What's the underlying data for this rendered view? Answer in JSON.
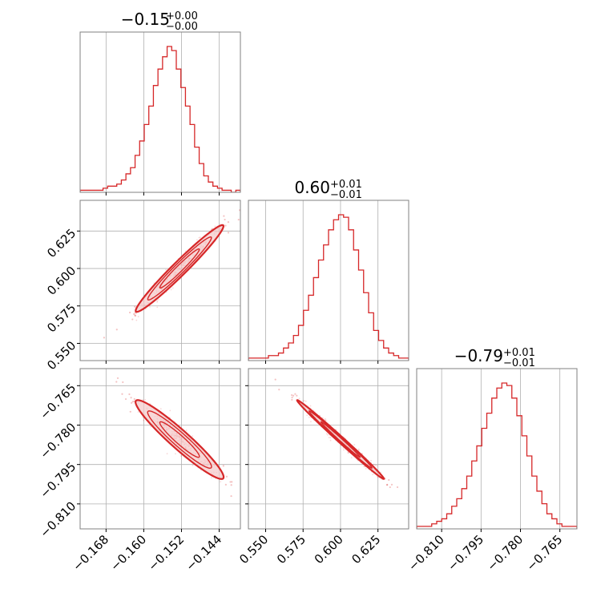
{
  "colors": {
    "series": "#d62728",
    "grid": "#b0b0b0",
    "frame": "#808080",
    "fill": "#f4c7c8"
  },
  "chart_data": {
    "type": "corner",
    "parameters": [
      {
        "title_main": "−0.15",
        "title_plus": "+0.00",
        "title_minus": "−0.00",
        "range": [
          -0.1735,
          -0.1395
        ],
        "ticks": [
          -0.168,
          -0.16,
          -0.152,
          -0.144
        ],
        "tick_labels": [
          "−0.168",
          "−0.160",
          "−0.152",
          "−0.144"
        ],
        "median": -0.1524,
        "sigma": 0.0046,
        "hist_counts": [
          1,
          1,
          1,
          1,
          1,
          2,
          3,
          3,
          4,
          6,
          9,
          12,
          18,
          25,
          33,
          42,
          52,
          60,
          66,
          71,
          69,
          60,
          51,
          42,
          33,
          22,
          14,
          8,
          5,
          3,
          2,
          1,
          1,
          0,
          1
        ]
      },
      {
        "title_main": "0.60",
        "title_plus": "+0.01",
        "title_minus": "−0.01",
        "range": [
          0.5385,
          0.6455
        ],
        "ticks": [
          0.55,
          0.575,
          0.6,
          0.625
        ],
        "tick_labels": [
          "0.550",
          "0.575",
          "0.600",
          "0.625"
        ],
        "median": 0.6,
        "sigma": 0.0145,
        "hist_counts": [
          1,
          1,
          1,
          1,
          2,
          2,
          3,
          5,
          7,
          10,
          14,
          20,
          26,
          33,
          40,
          46,
          52,
          56,
          58,
          57,
          52,
          44,
          36,
          27,
          19,
          12,
          8,
          5,
          3,
          2,
          1,
          1
        ]
      },
      {
        "title_main": "−0.79",
        "title_plus": "+0.01",
        "title_minus": "−0.01",
        "range": [
          -0.8195,
          -0.7585
        ],
        "ticks": [
          -0.81,
          -0.795,
          -0.78,
          -0.765
        ],
        "tick_labels": [
          "−0.810",
          "−0.795",
          "−0.780",
          "−0.765"
        ],
        "median": -0.7855,
        "sigma": 0.0075,
        "hist_counts": [
          1,
          1,
          1,
          2,
          3,
          4,
          6,
          9,
          12,
          16,
          21,
          27,
          33,
          40,
          46,
          52,
          56,
          58,
          57,
          52,
          45,
          37,
          29,
          21,
          15,
          10,
          6,
          4,
          2,
          1,
          1,
          1
        ]
      }
    ],
    "correlations": {
      "0_1": 0.99,
      "0_2": -0.98,
      "1_2": -0.995
    },
    "grid": true
  }
}
